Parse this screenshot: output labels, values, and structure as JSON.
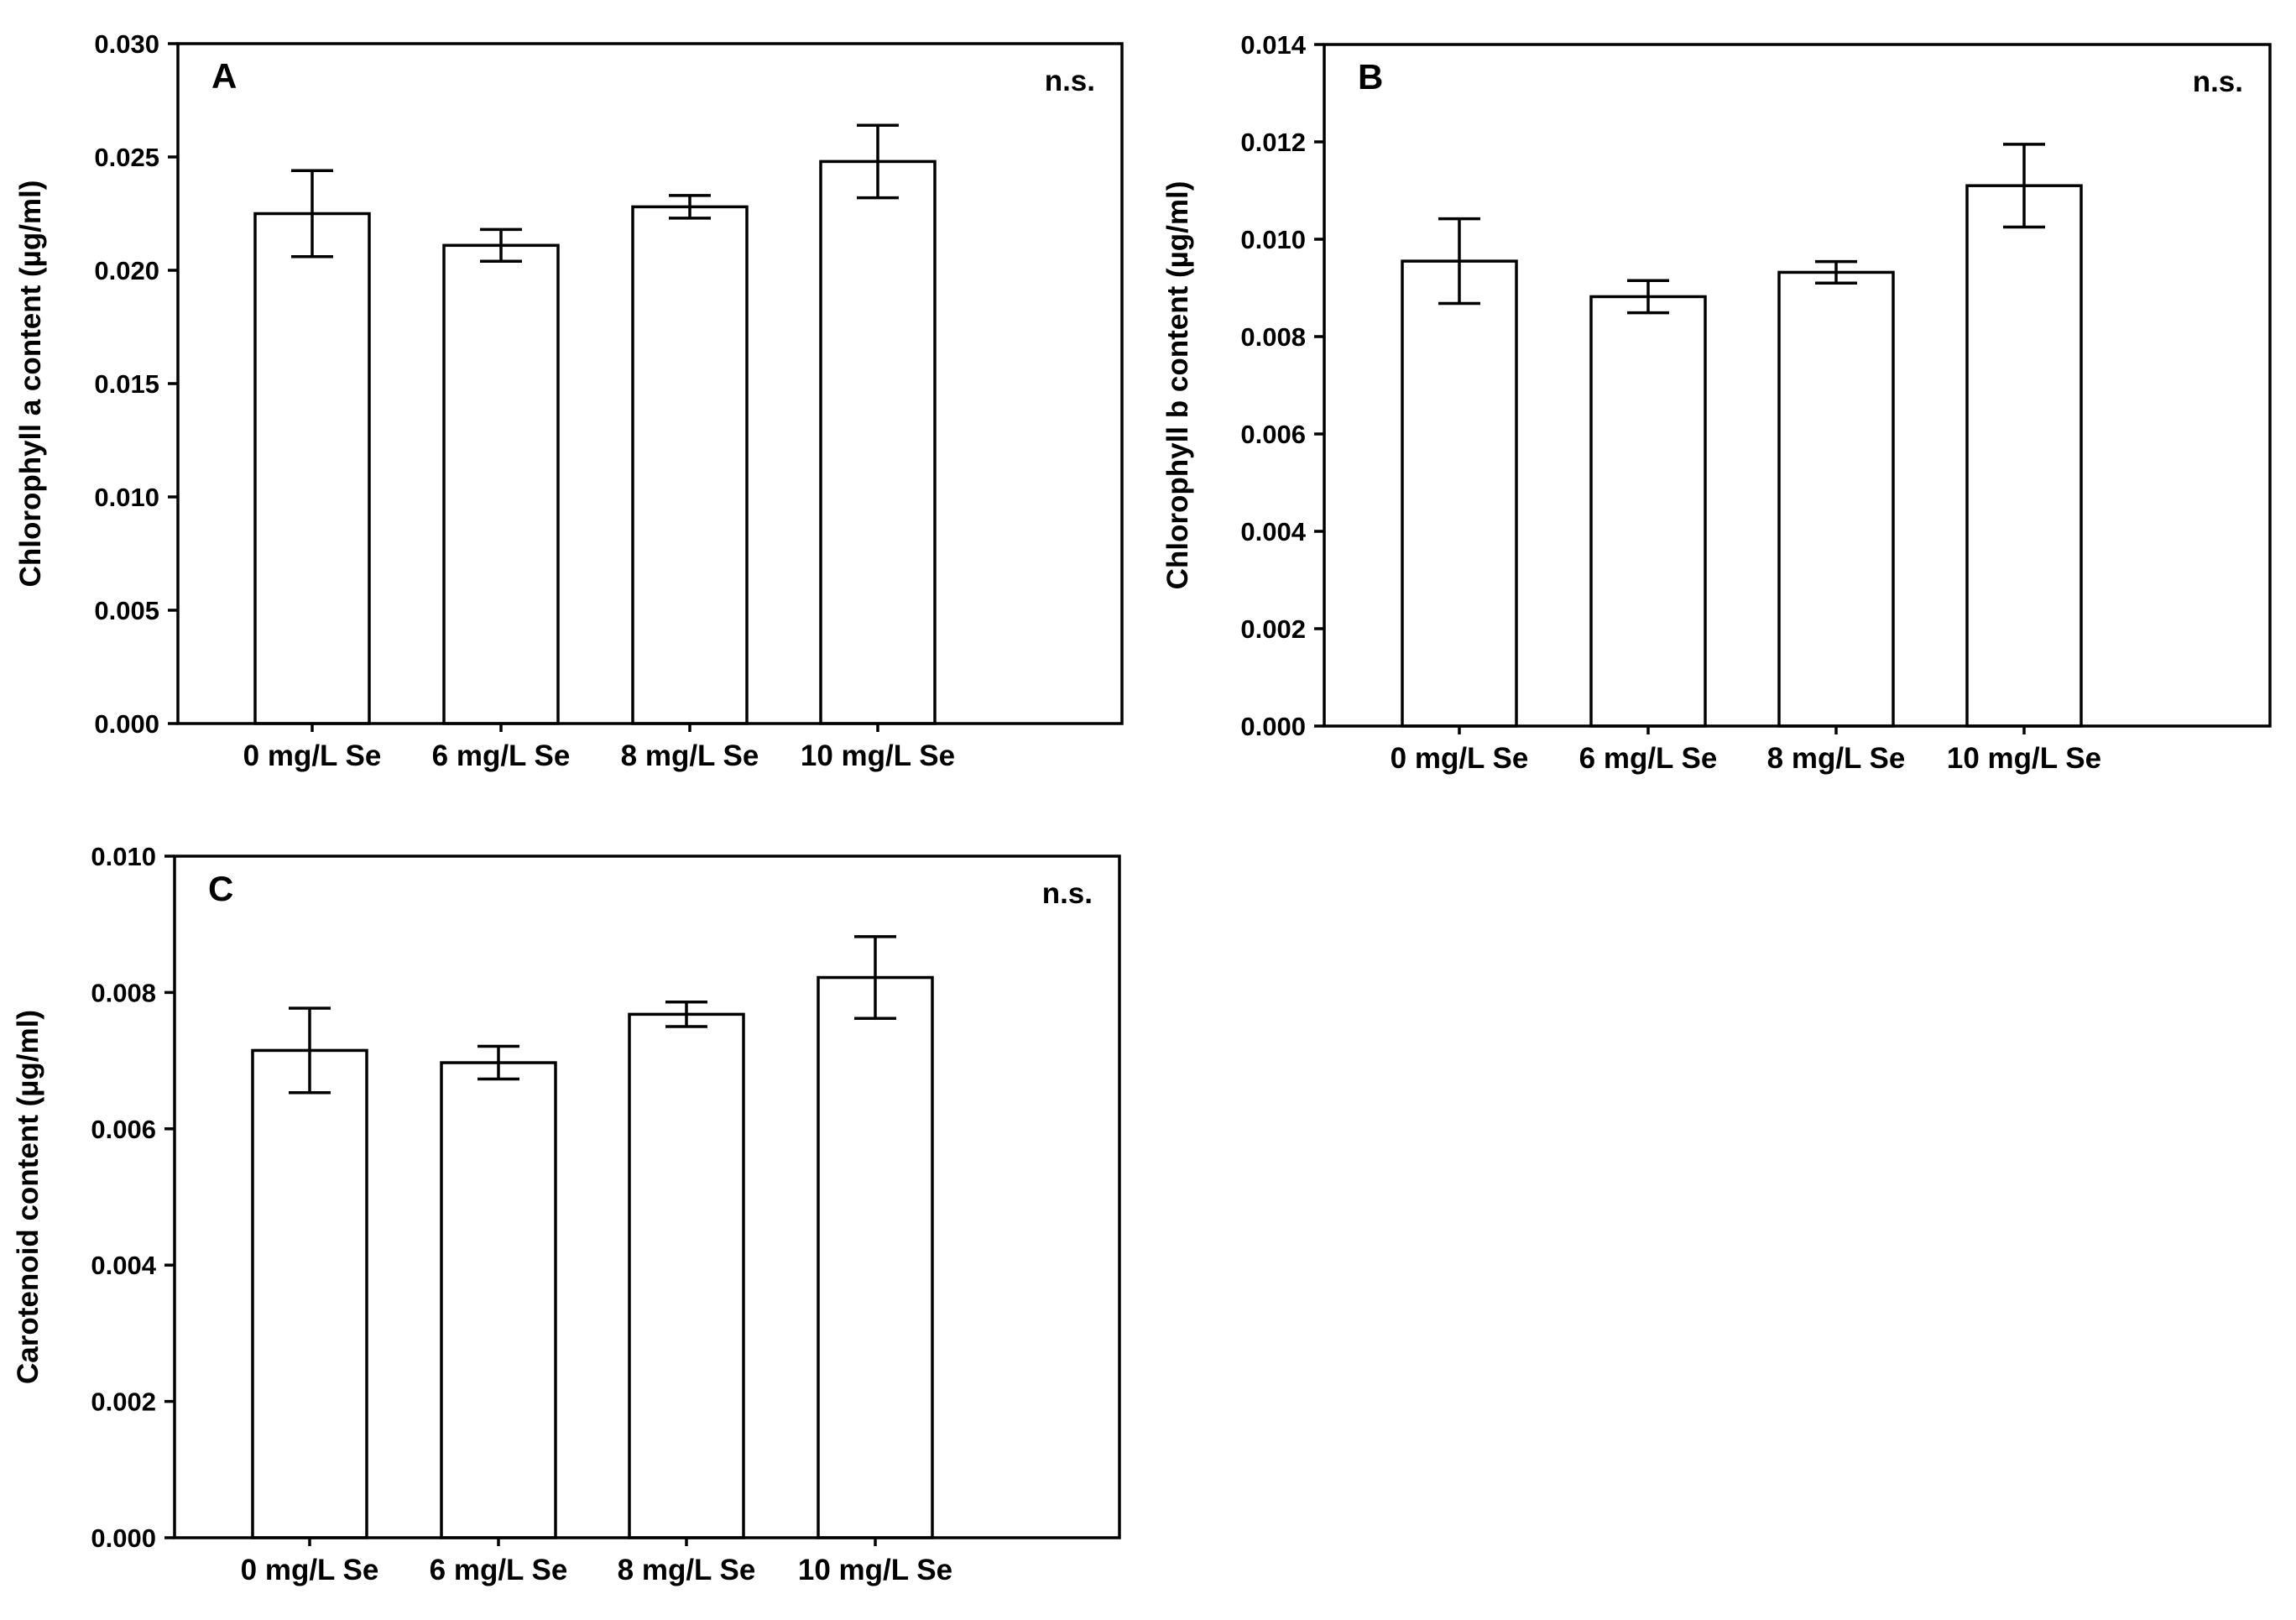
{
  "chart_data": [
    {
      "type": "bar",
      "panel": "A",
      "categories": [
        "0 mg/L Se",
        "6 mg/L Se",
        "8 mg/L Se",
        "10 mg/L Se"
      ],
      "values": [
        0.0225,
        0.0211,
        0.0228,
        0.0248
      ],
      "errors": [
        0.0019,
        0.0007,
        0.0005,
        0.0016
      ],
      "ylabel": "Chlorophyll a content (µg/ml)",
      "ylim": [
        0,
        0.03
      ],
      "yticks": [
        0.0,
        0.005,
        0.01,
        0.015,
        0.02,
        0.025,
        0.03
      ],
      "tick_decimals": 3,
      "annotation": "n.s."
    },
    {
      "type": "bar",
      "panel": "B",
      "categories": [
        "0 mg/L Se",
        "6 mg/L Se",
        "8 mg/L Se",
        "10 mg/L Se"
      ],
      "values": [
        0.00955,
        0.00882,
        0.00932,
        0.0111
      ],
      "errors": [
        0.00087,
        0.00033,
        0.00022,
        0.00085
      ],
      "ylabel": "Chlorophyll b content (µg/ml)",
      "ylim": [
        0,
        0.014
      ],
      "yticks": [
        0.0,
        0.002,
        0.004,
        0.006,
        0.008,
        0.01,
        0.012,
        0.014
      ],
      "tick_decimals": 3,
      "annotation": "n.s."
    },
    {
      "type": "bar",
      "panel": "C",
      "categories": [
        "0 mg/L Se",
        "6 mg/L Se",
        "8 mg/L Se",
        "10 mg/L Se"
      ],
      "values": [
        0.00715,
        0.00697,
        0.00768,
        0.00822
      ],
      "errors": [
        0.00062,
        0.00024,
        0.00018,
        0.0006
      ],
      "ylabel": "Carotenoid content (µg/ml)",
      "ylim": [
        0,
        0.01
      ],
      "yticks": [
        0.0,
        0.002,
        0.004,
        0.006,
        0.008,
        0.01
      ],
      "tick_decimals": 3,
      "annotation": "n.s."
    }
  ]
}
